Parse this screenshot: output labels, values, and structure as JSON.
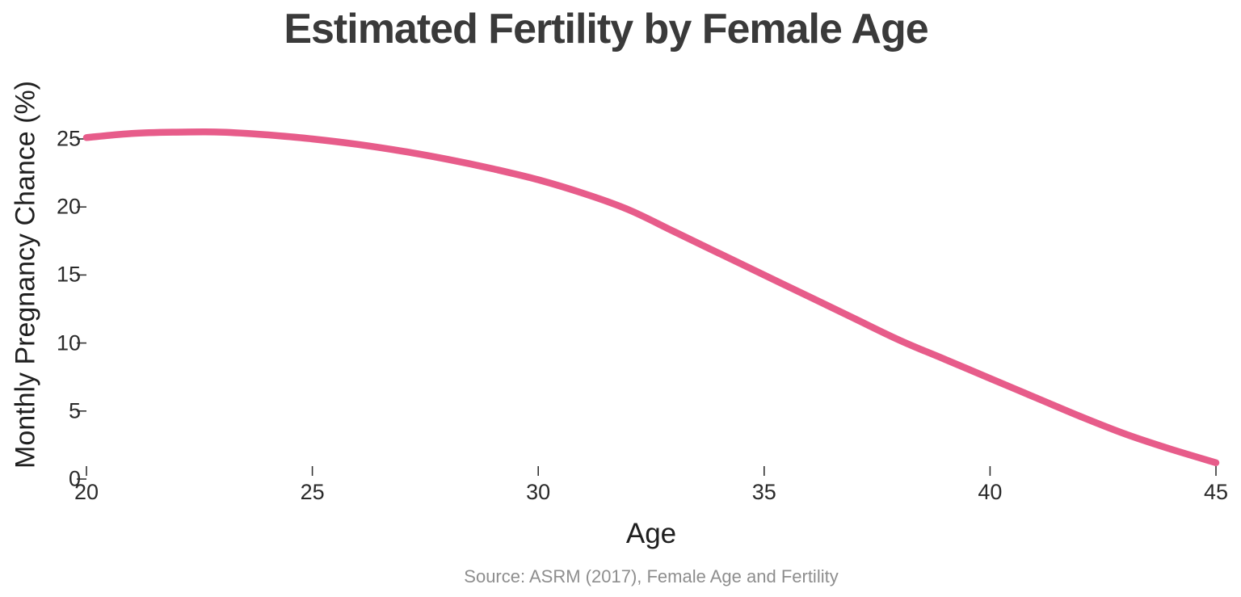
{
  "chart_data": {
    "type": "line",
    "title": "Estimated Fertility by Female Age",
    "xlabel": "Age",
    "ylabel": "Monthly Pregnancy Chance (%)",
    "source": "Source: ASRM (2017), Female Age and Fertility",
    "x": [
      20,
      21,
      22,
      23,
      24,
      25,
      26,
      27,
      28,
      29,
      30,
      31,
      32,
      33,
      34,
      35,
      36,
      37,
      38,
      39,
      40,
      41,
      42,
      43,
      44,
      45
    ],
    "series": [
      {
        "name": "Monthly pregnancy chance (%)",
        "values": [
          25.1,
          25.4,
          25.5,
          25.5,
          25.3,
          25.0,
          24.6,
          24.1,
          23.5,
          22.8,
          22.0,
          21.0,
          19.8,
          18.2,
          16.6,
          15.0,
          13.4,
          11.8,
          10.2,
          8.8,
          7.4,
          6.0,
          4.6,
          3.3,
          2.2,
          1.2
        ]
      }
    ],
    "xlim": [
      20,
      45
    ],
    "ylim": [
      0,
      27
    ],
    "x_ticks": [
      20,
      25,
      30,
      35,
      40,
      45
    ],
    "y_ticks": [
      0,
      5,
      10,
      15,
      20,
      25
    ],
    "grid": false,
    "legend": "none",
    "line_color": "#e75c8a",
    "tick_mark_color": "#333333",
    "colors": {
      "title": "#3a3a3a",
      "tick_labels": "#2a2a2a",
      "axis_labels": "#1f1f1f",
      "source": "#8e8e8e",
      "background": "#ffffff"
    }
  }
}
